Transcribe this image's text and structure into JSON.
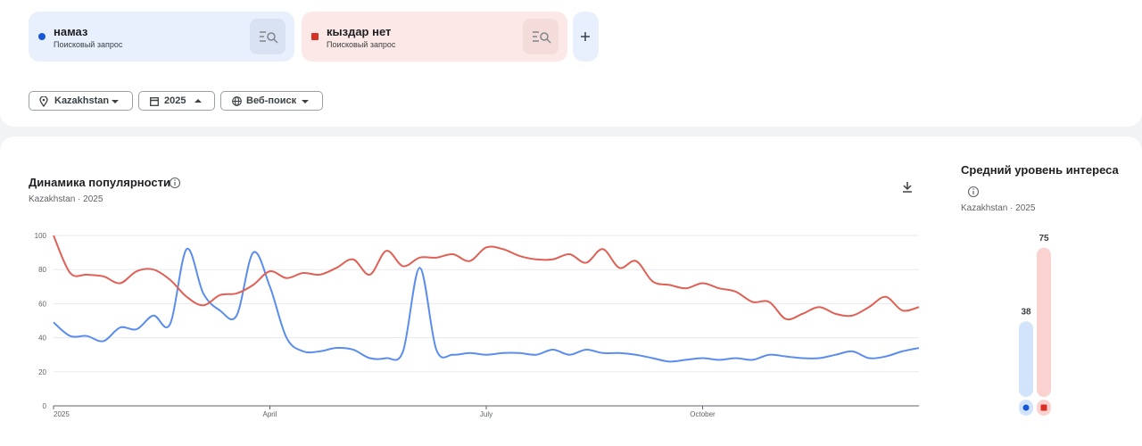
{
  "search_terms": [
    {
      "term": "намаз",
      "type": "Поисковый запрос",
      "color": "#1a57d6"
    },
    {
      "term": "кыздар нет",
      "type": "Поисковый запрос",
      "color": "#d93025"
    }
  ],
  "filters": {
    "region": "Kazakhstan",
    "period": "2025",
    "property": "Веб-поиск"
  },
  "chart_data": [
    {
      "type": "line",
      "title": "Динамика популярности",
      "subtitle": "Kazakhstan · 2025",
      "categories": [
        "2025",
        null,
        null,
        null,
        null,
        null,
        null,
        null,
        null,
        null,
        null,
        null,
        null,
        "April",
        null,
        null,
        null,
        null,
        null,
        null,
        null,
        null,
        null,
        null,
        null,
        null,
        "July",
        null,
        null,
        null,
        null,
        null,
        null,
        null,
        null,
        null,
        null,
        null,
        null,
        "October",
        null,
        null,
        null,
        null,
        null,
        null,
        null,
        null,
        null,
        null,
        null,
        null,
        null
      ],
      "series": [
        {
          "name": "намаз",
          "color": "#5b8def",
          "values": [
            49,
            41,
            41,
            38,
            46,
            45,
            53,
            48,
            92,
            66,
            56,
            53,
            90,
            70,
            40,
            32,
            32,
            34,
            33,
            28,
            28,
            32,
            81,
            33,
            30,
            31,
            30,
            31,
            31,
            30,
            33,
            30,
            33,
            31,
            31,
            30,
            28,
            26,
            27,
            28,
            27,
            28,
            27,
            30,
            29,
            28,
            28,
            30,
            32,
            28,
            29,
            32,
            34
          ]
        },
        {
          "name": "кыздар нет",
          "color": "#e06055",
          "values": [
            100,
            78,
            77,
            76,
            72,
            79,
            80,
            74,
            64,
            59,
            65,
            66,
            71,
            79,
            75,
            78,
            77,
            81,
            86,
            77,
            91,
            82,
            87,
            87,
            89,
            85,
            93,
            92,
            88,
            86,
            86,
            89,
            84,
            92,
            81,
            85,
            73,
            71,
            69,
            72,
            69,
            67,
            61,
            61,
            51,
            54,
            58,
            54,
            53,
            58,
            64,
            56,
            58
          ]
        }
      ],
      "ylim": [
        0,
        100
      ],
      "yticks": [
        0,
        20,
        40,
        60,
        80,
        100
      ],
      "grid": true
    },
    {
      "type": "bar",
      "title": "Средний уровень интереса",
      "subtitle": "Kazakhstan · 2025",
      "values": [
        38,
        75
      ],
      "colors": [
        "#d2e3fc",
        "#fad2cf"
      ],
      "ylim": [
        0,
        100
      ]
    }
  ]
}
